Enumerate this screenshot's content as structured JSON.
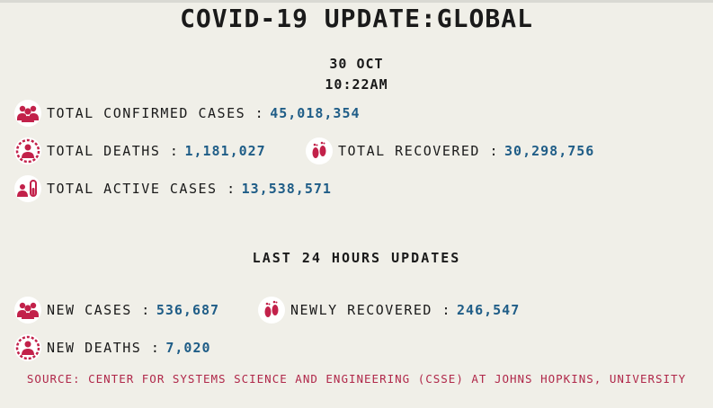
{
  "title": "COVID-19 UPDATE:GLOBAL",
  "date": "30 OCT",
  "time": "10:22AM",
  "totals": {
    "confirmed": {
      "label": "TOTAL CONFIRMED CASES :",
      "value": "45,018,354",
      "icon": "people-group-icon"
    },
    "deaths": {
      "label": "TOTAL DEATHS :",
      "value": "1,181,027",
      "icon": "virus-person-icon"
    },
    "recovered": {
      "label": "TOTAL RECOVERED :",
      "value": "30,298,756",
      "icon": "footprints-icon"
    },
    "active": {
      "label": "TOTAL ACTIVE CASES :",
      "value": "13,538,571",
      "icon": "test-tube-person-icon"
    }
  },
  "last24": {
    "heading": "LAST 24 HOURS UPDATES",
    "new_cases": {
      "label": "NEW CASES :",
      "value": "536,687",
      "icon": "people-group-icon"
    },
    "newly_recovered": {
      "label": "NEWLY RECOVERED :",
      "value": "246,547",
      "icon": "footprints-icon"
    },
    "new_deaths": {
      "label": "NEW DEATHS :",
      "value": "7,020",
      "icon": "virus-person-icon"
    }
  },
  "source": "SOURCE: CENTER FOR SYSTEMS SCIENCE AND ENGINEERING (CSSE) AT JOHNS HOPKINS, UNIVERSITY",
  "colors": {
    "accent": "#c2214a",
    "value": "#1f5d87",
    "background": "#f0efe8"
  }
}
